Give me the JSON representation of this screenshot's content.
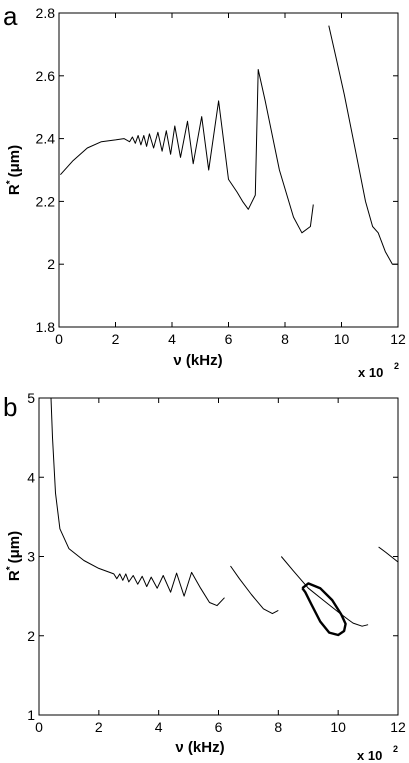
{
  "chart_data": [
    {
      "type": "line",
      "panel_label": "a",
      "xlabel": "ν (kHz)",
      "ylabel_main": "R",
      "ylabel_sup": "*",
      "ylabel_unit": "(μm)",
      "x_multiplier": "x 10",
      "x_multiplier_exp": "2",
      "xlim": [
        0,
        12
      ],
      "ylim": [
        1.8,
        2.8
      ],
      "xticks": [
        "0",
        "2",
        "4",
        "6",
        "8",
        "10",
        "12"
      ],
      "yticks": [
        "1.8",
        "2",
        "2.2",
        "2.4",
        "2.6",
        "2.8"
      ],
      "xtick_values": [
        0,
        2,
        4,
        6,
        8,
        10,
        12
      ],
      "ytick_values": [
        1.8,
        2.0,
        2.2,
        2.4,
        2.6,
        2.8
      ],
      "grid": false,
      "series": [
        {
          "points": [
            [
              0.05,
              2.285
            ],
            [
              0.5,
              2.33
            ],
            [
              1.0,
              2.37
            ],
            [
              1.5,
              2.39
            ],
            [
              2.0,
              2.396
            ],
            [
              2.3,
              2.4
            ],
            [
              2.5,
              2.39
            ],
            [
              2.6,
              2.405
            ],
            [
              2.7,
              2.385
            ],
            [
              2.8,
              2.41
            ],
            [
              2.9,
              2.38
            ],
            [
              3.0,
              2.41
            ],
            [
              3.1,
              2.375
            ],
            [
              3.2,
              2.415
            ],
            [
              3.35,
              2.37
            ],
            [
              3.5,
              2.42
            ],
            [
              3.65,
              2.36
            ],
            [
              3.8,
              2.425
            ],
            [
              3.95,
              2.35
            ],
            [
              4.1,
              2.44
            ],
            [
              4.3,
              2.34
            ],
            [
              4.55,
              2.455
            ],
            [
              4.75,
              2.32
            ],
            [
              5.05,
              2.47
            ],
            [
              5.3,
              2.3
            ],
            [
              5.65,
              2.52
            ],
            [
              6.0,
              2.27
            ],
            [
              6.3,
              2.23
            ],
            [
              6.5,
              2.2
            ],
            [
              6.7,
              2.175
            ],
            [
              6.95,
              2.22
            ],
            [
              7.05,
              2.62
            ],
            [
              7.3,
              2.52
            ],
            [
              7.8,
              2.3
            ],
            [
              8.3,
              2.15
            ],
            [
              8.6,
              2.1
            ],
            [
              8.9,
              2.12
            ],
            [
              9.0,
              2.19
            ]
          ]
        },
        {
          "points": [
            [
              9.55,
              2.76
            ],
            [
              9.8,
              2.66
            ],
            [
              10.1,
              2.54
            ],
            [
              10.5,
              2.36
            ],
            [
              10.85,
              2.2
            ],
            [
              11.1,
              2.12
            ],
            [
              11.3,
              2.1
            ],
            [
              11.55,
              2.04
            ],
            [
              11.8,
              2.0
            ],
            [
              12.0,
              2.0
            ]
          ]
        }
      ]
    },
    {
      "type": "line",
      "panel_label": "b",
      "xlabel": "ν (kHz)",
      "ylabel_main": "R",
      "ylabel_sup": "*",
      "ylabel_unit": "(μm)",
      "x_multiplier": "x 10",
      "x_multiplier_exp": "2",
      "xlim": [
        0,
        12
      ],
      "ylim": [
        1,
        5
      ],
      "xticks": [
        "0",
        "2",
        "4",
        "6",
        "8",
        "10",
        "12"
      ],
      "yticks": [
        "1",
        "2",
        "3",
        "4",
        "5"
      ],
      "xtick_values": [
        0,
        2,
        4,
        6,
        8,
        10,
        12
      ],
      "ytick_values": [
        1,
        2,
        3,
        4,
        5
      ],
      "grid": false,
      "series": [
        {
          "points": [
            [
              0.4,
              5.0
            ],
            [
              0.45,
              4.5
            ],
            [
              0.55,
              3.8
            ],
            [
              0.7,
              3.35
            ],
            [
              1.0,
              3.1
            ],
            [
              1.5,
              2.95
            ],
            [
              2.0,
              2.85
            ],
            [
              2.5,
              2.78
            ],
            [
              2.6,
              2.72
            ],
            [
              2.7,
              2.78
            ],
            [
              2.8,
              2.7
            ],
            [
              2.9,
              2.78
            ],
            [
              3.0,
              2.68
            ],
            [
              3.15,
              2.76
            ],
            [
              3.3,
              2.65
            ],
            [
              3.45,
              2.75
            ],
            [
              3.6,
              2.62
            ],
            [
              3.75,
              2.74
            ],
            [
              3.95,
              2.6
            ],
            [
              4.15,
              2.76
            ],
            [
              4.4,
              2.55
            ],
            [
              4.6,
              2.79
            ],
            [
              4.85,
              2.5
            ],
            [
              5.1,
              2.8
            ],
            [
              5.4,
              2.6
            ],
            [
              5.7,
              2.42
            ],
            [
              5.95,
              2.38
            ],
            [
              6.2,
              2.48
            ]
          ]
        },
        {
          "points": [
            [
              6.4,
              2.88
            ],
            [
              6.7,
              2.72
            ],
            [
              7.1,
              2.52
            ],
            [
              7.5,
              2.34
            ],
            [
              7.8,
              2.28
            ],
            [
              8.0,
              2.32
            ]
          ]
        },
        {
          "points": [
            [
              8.1,
              3.0
            ],
            [
              8.5,
              2.82
            ],
            [
              9.0,
              2.6
            ],
            [
              9.5,
              2.45
            ],
            [
              10.0,
              2.3
            ],
            [
              10.35,
              2.2
            ],
            [
              10.5,
              2.16
            ],
            [
              10.8,
              2.12
            ],
            [
              11.0,
              2.14
            ]
          ]
        },
        {
          "points": [
            [
              11.35,
              3.12
            ],
            [
              11.6,
              3.05
            ],
            [
              12.0,
              2.93
            ]
          ]
        }
      ],
      "loop": {
        "points": [
          [
            8.8,
            2.6
          ],
          [
            9.0,
            2.66
          ],
          [
            9.4,
            2.6
          ],
          [
            9.8,
            2.45
          ],
          [
            10.1,
            2.27
          ],
          [
            10.25,
            2.15
          ],
          [
            10.2,
            2.06
          ],
          [
            10.0,
            2.01
          ],
          [
            9.7,
            2.04
          ],
          [
            9.4,
            2.18
          ],
          [
            9.1,
            2.4
          ],
          [
            8.9,
            2.55
          ],
          [
            8.8,
            2.6
          ]
        ]
      }
    }
  ]
}
